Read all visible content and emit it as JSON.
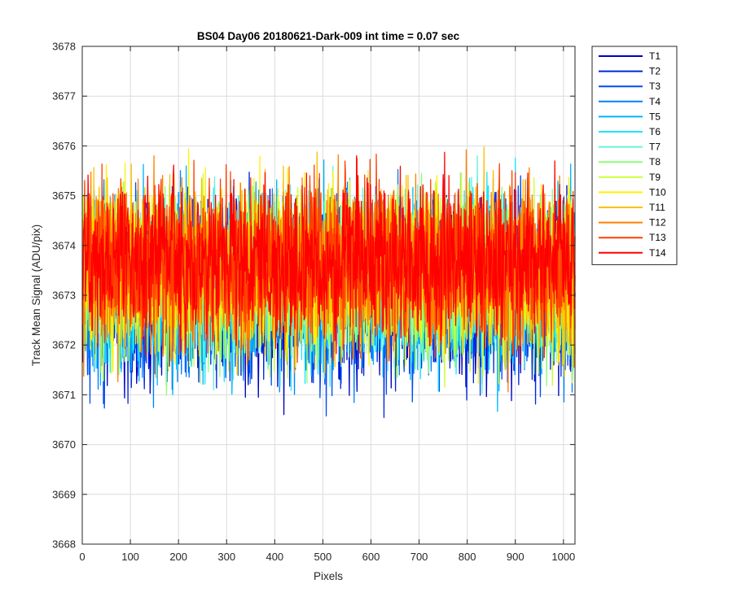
{
  "chart_data": {
    "type": "line",
    "title": "BS04 Day06 20180621-Dark-009 int time = 0.07 sec",
    "xlabel": "Pixels",
    "ylabel": "Track Mean Signal (ADU/pix)",
    "xlim": [
      0,
      1024
    ],
    "ylim": [
      3668,
      3678
    ],
    "xticks": [
      0,
      100,
      200,
      300,
      400,
      500,
      600,
      700,
      800,
      900,
      1000
    ],
    "yticks": [
      3668,
      3669,
      3670,
      3671,
      3672,
      3673,
      3674,
      3675,
      3676,
      3677,
      3678
    ],
    "grid": true,
    "legend_position": "outside-top-right",
    "n_points": 1024,
    "series": [
      {
        "name": "T1",
        "color": "#0000BF",
        "mean": 3673.0,
        "spread": 0.9
      },
      {
        "name": "T2",
        "color": "#0026D9",
        "mean": 3673.05,
        "spread": 0.88
      },
      {
        "name": "T3",
        "color": "#004CF2",
        "mean": 3673.1,
        "spread": 0.87
      },
      {
        "name": "T4",
        "color": "#0080FF",
        "mean": 3673.15,
        "spread": 0.86
      },
      {
        "name": "T5",
        "color": "#00B3FF",
        "mean": 3673.2,
        "spread": 0.85
      },
      {
        "name": "T6",
        "color": "#19E6FF",
        "mean": 3673.25,
        "spread": 0.84
      },
      {
        "name": "T7",
        "color": "#66F2D9",
        "mean": 3673.3,
        "spread": 0.83
      },
      {
        "name": "T8",
        "color": "#8CFF73",
        "mean": 3673.35,
        "spread": 0.82
      },
      {
        "name": "T9",
        "color": "#CCFF33",
        "mean": 3673.4,
        "spread": 0.82
      },
      {
        "name": "T10",
        "color": "#FFF200",
        "mean": 3673.5,
        "spread": 0.82
      },
      {
        "name": "T11",
        "color": "#FFBF00",
        "mean": 3673.55,
        "spread": 0.82
      },
      {
        "name": "T12",
        "color": "#FF8000",
        "mean": 3673.6,
        "spread": 0.82
      },
      {
        "name": "T13",
        "color": "#FF4000",
        "mean": 3673.65,
        "spread": 0.82
      },
      {
        "name": "T14",
        "color": "#FF0000",
        "mean": 3673.7,
        "spread": 0.8
      }
    ]
  }
}
